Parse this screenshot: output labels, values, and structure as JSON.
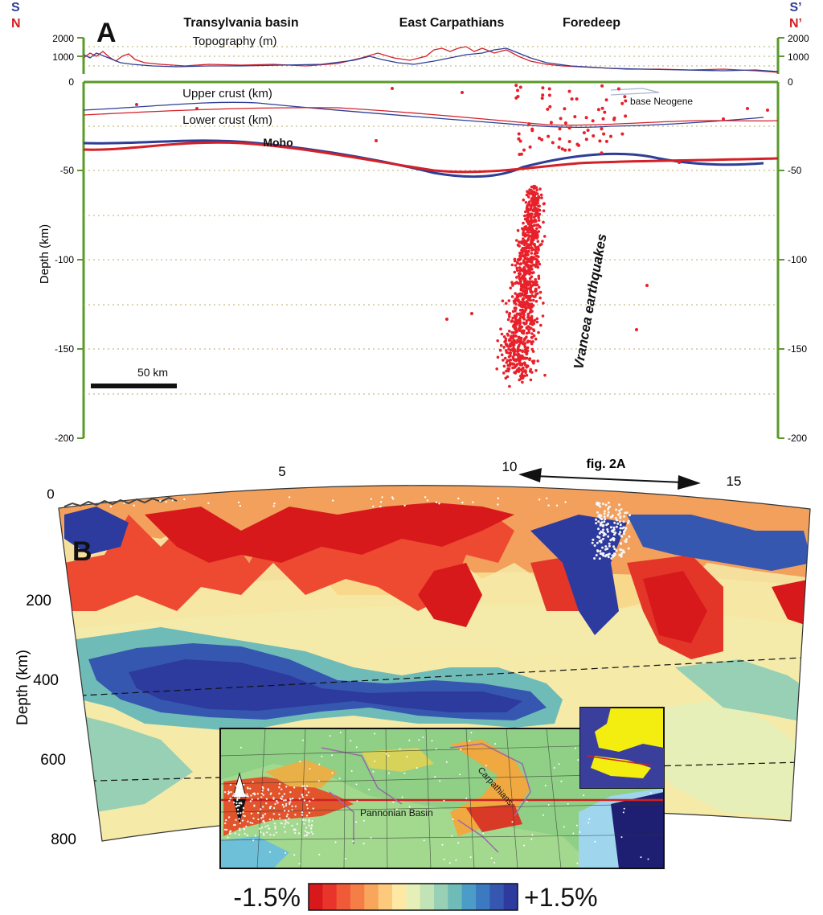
{
  "panel_a": {
    "label": "A",
    "left_top": "S",
    "left_bottom": "N",
    "right_top": "S’",
    "right_bottom": "N’",
    "regions": [
      "Transylvania basin",
      "East Carpathians",
      "Foredeep"
    ],
    "topo_title": "Topography (m)",
    "topo_ticks": [
      "2000",
      "1000"
    ],
    "upper_crust": "Upper crust (km)",
    "lower_crust": "Lower crust (km)",
    "moho": "Moho",
    "base_neogene": "base Neogene",
    "quakes_label": "Vrancea earthquakes",
    "ylabel": "Depth (km)",
    "yticks": [
      "0",
      "-50",
      "-100",
      "-150",
      "-200"
    ],
    "scale_bar": "50 km",
    "colors": {
      "profile_s": "#2e3d96",
      "profile_n": "#d42027",
      "frame": "#5a9a2a",
      "quakes": "#e8202a"
    }
  },
  "panel_b": {
    "label": "B",
    "top_ticks": [
      "0",
      "5",
      "10",
      "15"
    ],
    "fig_ref": "fig. 2A",
    "ylabel": "Depth (km)",
    "yticks": [
      "200",
      "400",
      "600",
      "800"
    ],
    "inset_labels": [
      "Carpathians",
      "Pannonian Basin"
    ],
    "colorbar_min": "-1.5%",
    "colorbar_max": "+1.5%",
    "colorbar": [
      "#d7191c",
      "#e8342a",
      "#f15a38",
      "#f47e45",
      "#f9a65d",
      "#fcc97d",
      "#fde9a4",
      "#e6efb8",
      "#c2e3b6",
      "#97d0b5",
      "#6fbbb8",
      "#4b9cc6",
      "#3b7ac0",
      "#3657b0",
      "#2d3a9e"
    ]
  }
}
